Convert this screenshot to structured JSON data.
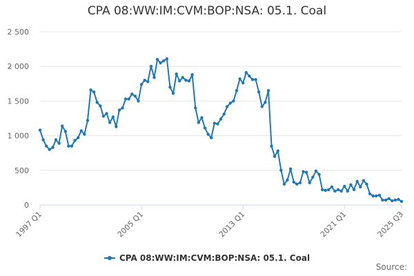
{
  "title": "CPA 08:WW:IM:CVM:BOP:NSA: 05.1. Coal",
  "source_label": "Source:",
  "colors": {
    "series": "#1f77b4",
    "grid": "#e6e6e6",
    "axis": "#ccd6eb"
  },
  "chart_data": {
    "type": "line",
    "title": "CPA 08:WW:IM:CVM:BOP:NSA: 05.1. Coal",
    "xlabel": "",
    "ylabel": "",
    "ylim": [
      0,
      2500
    ],
    "y_ticks": [
      {
        "value": 0,
        "label": "0"
      },
      {
        "value": 500,
        "label": "500"
      },
      {
        "value": 1000,
        "label": "1 000"
      },
      {
        "value": 1500,
        "label": "1 500"
      },
      {
        "value": 2000,
        "label": "2 000"
      },
      {
        "value": 2500,
        "label": "2 500"
      }
    ],
    "x_ticks": [
      "1997 Q1",
      "2005 Q1",
      "2013 Q1",
      "2021 Q1",
      "2025 Q3"
    ],
    "legend": "bottom-center",
    "grid": true,
    "series": [
      {
        "name": "CPA 08:WW:IM:CVM:BOP:NSA: 05.1. Coal",
        "x": [
          "1997 Q1",
          "1997 Q2",
          "1997 Q3",
          "1997 Q4",
          "1998 Q1",
          "1998 Q2",
          "1998 Q3",
          "1998 Q4",
          "1999 Q1",
          "1999 Q2",
          "1999 Q3",
          "1999 Q4",
          "2000 Q1",
          "2000 Q2",
          "2000 Q3",
          "2000 Q4",
          "2001 Q1",
          "2001 Q2",
          "2001 Q3",
          "2001 Q4",
          "2002 Q1",
          "2002 Q2",
          "2002 Q3",
          "2002 Q4",
          "2003 Q1",
          "2003 Q2",
          "2003 Q3",
          "2003 Q4",
          "2004 Q1",
          "2004 Q2",
          "2004 Q3",
          "2004 Q4",
          "2005 Q1",
          "2005 Q2",
          "2005 Q3",
          "2005 Q4",
          "2006 Q1",
          "2006 Q2",
          "2006 Q3",
          "2006 Q4",
          "2007 Q1",
          "2007 Q2",
          "2007 Q3",
          "2007 Q4",
          "2008 Q1",
          "2008 Q2",
          "2008 Q3",
          "2008 Q4",
          "2009 Q1",
          "2009 Q2",
          "2009 Q3",
          "2009 Q4",
          "2010 Q1",
          "2010 Q2",
          "2010 Q3",
          "2010 Q4",
          "2011 Q1",
          "2011 Q2",
          "2011 Q3",
          "2011 Q4",
          "2012 Q1",
          "2012 Q2",
          "2012 Q3",
          "2012 Q4",
          "2013 Q1",
          "2013 Q2",
          "2013 Q3",
          "2013 Q4",
          "2014 Q1",
          "2014 Q2",
          "2014 Q3",
          "2014 Q4",
          "2015 Q1",
          "2015 Q2",
          "2015 Q3",
          "2015 Q4",
          "2016 Q1",
          "2016 Q2",
          "2016 Q3",
          "2016 Q4",
          "2017 Q1",
          "2017 Q2",
          "2017 Q3",
          "2017 Q4",
          "2018 Q1",
          "2018 Q2",
          "2018 Q3",
          "2018 Q4",
          "2019 Q1",
          "2019 Q2",
          "2019 Q3",
          "2019 Q4",
          "2020 Q1",
          "2020 Q2",
          "2020 Q3",
          "2020 Q4",
          "2021 Q1",
          "2021 Q2",
          "2021 Q3",
          "2021 Q4",
          "2022 Q1",
          "2022 Q2",
          "2022 Q3",
          "2022 Q4",
          "2023 Q1",
          "2023 Q2",
          "2023 Q3",
          "2023 Q4",
          "2024 Q1",
          "2024 Q2",
          "2024 Q3",
          "2024 Q4",
          "2025 Q1",
          "2025 Q2",
          "2025 Q3"
        ],
        "values": [
          1080,
          940,
          850,
          800,
          830,
          940,
          890,
          1140,
          1060,
          850,
          850,
          930,
          970,
          1070,
          1020,
          1220,
          1660,
          1630,
          1480,
          1430,
          1280,
          1320,
          1190,
          1270,
          1130,
          1370,
          1400,
          1530,
          1530,
          1600,
          1570,
          1500,
          1740,
          1800,
          1780,
          2000,
          1840,
          2100,
          2050,
          2080,
          2110,
          1700,
          1610,
          1890,
          1790,
          1840,
          1800,
          1790,
          1880,
          1400,
          1190,
          1260,
          1110,
          1020,
          970,
          1180,
          1170,
          1240,
          1310,
          1420,
          1470,
          1500,
          1650,
          1820,
          1760,
          1910,
          1860,
          1810,
          1810,
          1630,
          1420,
          1480,
          1650,
          850,
          700,
          780,
          500,
          300,
          360,
          520,
          330,
          300,
          320,
          480,
          470,
          320,
          400,
          490,
          440,
          220,
          210,
          220,
          260,
          200,
          220,
          200,
          270,
          200,
          290,
          220,
          340,
          260,
          350,
          300,
          160,
          130,
          130,
          140,
          70,
          70,
          90,
          60,
          70,
          80,
          50
        ]
      }
    ]
  }
}
